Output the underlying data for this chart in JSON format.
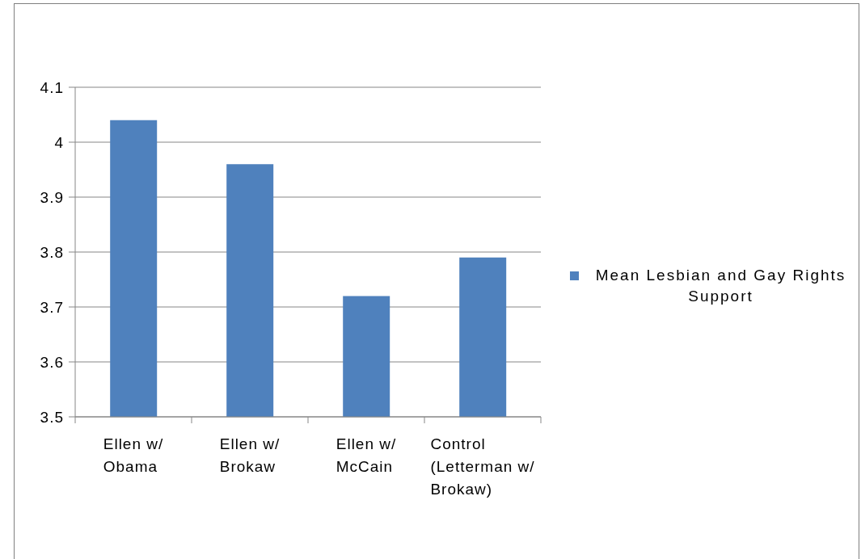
{
  "chart_data": {
    "type": "bar",
    "categories": [
      "Ellen w/ Obama",
      "Ellen w/ Brokaw",
      "Ellen w/ McCain",
      "Control (Letterman w/ Brokaw)"
    ],
    "series": [
      {
        "name": "Mean Lesbian and Gay Rights Support",
        "color": "#4f81bd",
        "values": [
          4.04,
          3.96,
          3.72,
          3.79
        ]
      }
    ],
    "ylim": [
      3.5,
      4.1
    ],
    "yticks": [
      3.5,
      3.6,
      3.7,
      3.8,
      3.9,
      4,
      4.1
    ],
    "grid": "y",
    "legend": "right"
  }
}
